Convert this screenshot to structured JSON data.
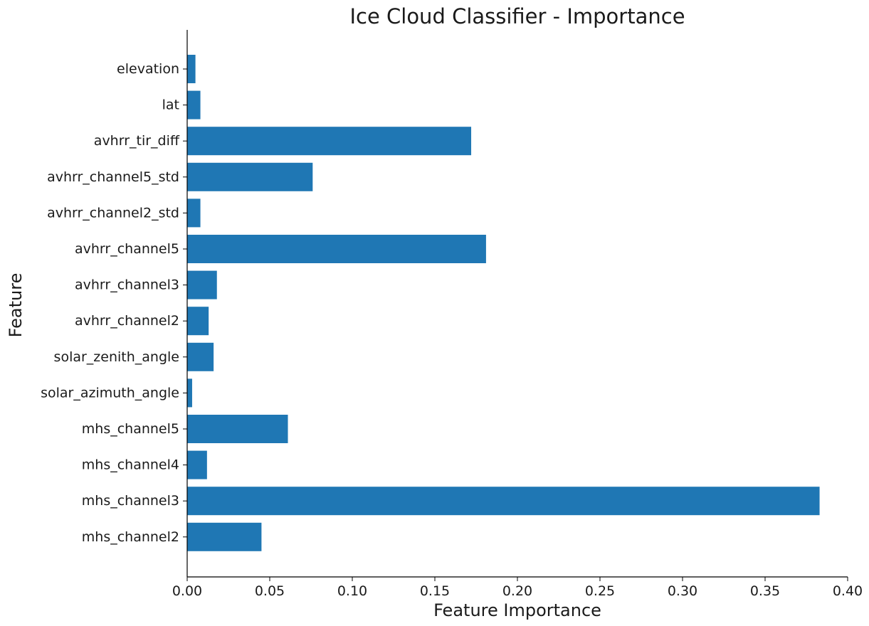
{
  "chart_data": {
    "type": "bar",
    "orientation": "horizontal",
    "title": "Ice Cloud Classifier - Importance",
    "xlabel": "Feature Importance",
    "ylabel": "Feature",
    "xlim": [
      0,
      0.4
    ],
    "xticks": [
      "0.00",
      "0.05",
      "0.10",
      "0.15",
      "0.20",
      "0.25",
      "0.30",
      "0.35",
      "0.40"
    ],
    "grid": false,
    "legend": "none",
    "bar_color": "#1f77b4",
    "categories": [
      "mhs_channel2",
      "mhs_channel3",
      "mhs_channel4",
      "mhs_channel5",
      "solar_azimuth_angle",
      "solar_zenith_angle",
      "avhrr_channel2",
      "avhrr_channel3",
      "avhrr_channel5",
      "avhrr_channel2_std",
      "avhrr_channel5_std",
      "avhrr_tir_diff",
      "lat",
      "elevation"
    ],
    "values": [
      0.045,
      0.383,
      0.012,
      0.061,
      0.003,
      0.016,
      0.013,
      0.018,
      0.181,
      0.008,
      0.076,
      0.172,
      0.008,
      0.005
    ]
  }
}
